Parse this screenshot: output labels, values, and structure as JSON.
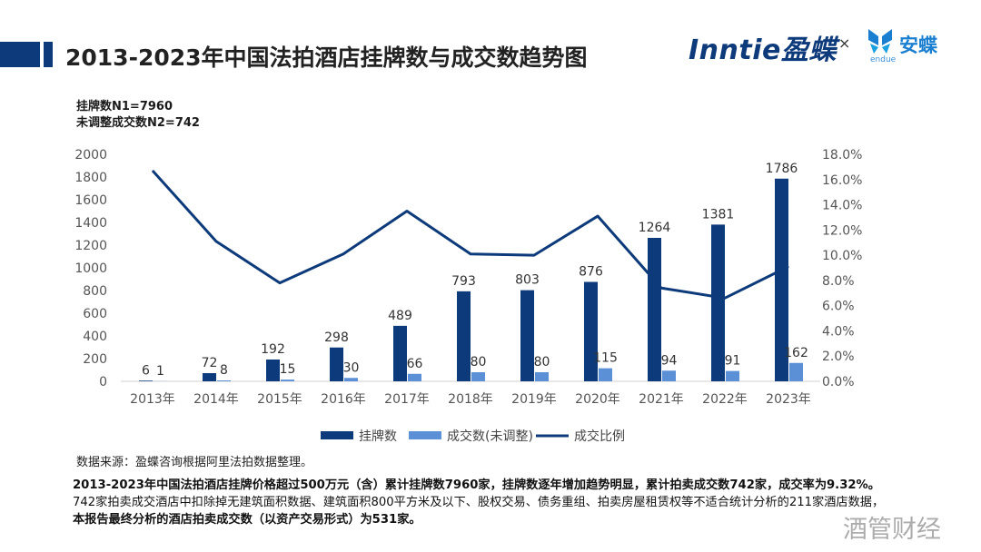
{
  "header": {
    "title": "2013-2023年中国法拍酒店挂牌数与成交数趋势图",
    "brand_primary": "Inntie盈蝶",
    "brand_separator": "×",
    "brand_secondary": "安蝶",
    "brand_secondary_sub": "endue"
  },
  "stats": {
    "n1": "挂牌数N1=7960",
    "n2": "未调整成交数N2=742"
  },
  "colors": {
    "listings": "#0d3a7a",
    "deals": "#5b8fd6",
    "ratio": "#0d3a7a"
  },
  "chart_data": {
    "type": "bar",
    "categories": [
      "2013年",
      "2014年",
      "2015年",
      "2016年",
      "2017年",
      "2018年",
      "2019年",
      "2020年",
      "2021年",
      "2022年",
      "2023年"
    ],
    "series": [
      {
        "name": "挂牌数",
        "type": "bar",
        "values": [
          6,
          72,
          192,
          298,
          489,
          793,
          803,
          876,
          1264,
          1381,
          1786
        ]
      },
      {
        "name": "成交数(未调整)",
        "type": "bar",
        "values": [
          1,
          8,
          15,
          30,
          66,
          80,
          80,
          115,
          94,
          91,
          162
        ]
      },
      {
        "name": "成交比例",
        "type": "line",
        "axis": "right",
        "values": [
          16.7,
          11.1,
          7.8,
          10.1,
          13.5,
          10.1,
          10.0,
          13.1,
          7.4,
          6.6,
          9.1
        ]
      }
    ],
    "yticks_left": [
      "0",
      "200",
      "400",
      "600",
      "800",
      "1000",
      "1200",
      "1400",
      "1600",
      "1800",
      "2000"
    ],
    "yticks_right": [
      "0.0%",
      "2.0%",
      "4.0%",
      "6.0%",
      "8.0%",
      "10.0%",
      "12.0%",
      "14.0%",
      "16.0%",
      "18.0%"
    ],
    "ylim_left": [
      0,
      2000
    ],
    "ylim_right": [
      0,
      18
    ],
    "legend_position": "bottom",
    "grid": false
  },
  "footer": {
    "source": "数据来源：盈蝶咨询根据阿里法拍数据整理。",
    "para_bold1": "2013-2023年中国法拍酒店挂牌价格超过500万元（含）累计挂牌数7960家，挂牌数逐年增加趋势明显，累计拍卖成交数742家，成交率为9.32%。",
    "para_normal": "742家拍卖成交酒店中扣除掉无建筑面积数据、建筑面积800平方米及以下、股权交易、债务重组、拍卖房屋租赁权等不适合统计分析的211家酒店数据，",
    "para_bold2": "本报告最终分析的酒店拍卖成交数（以资产交易形式）为531家。",
    "watermark": "酒管财经"
  }
}
